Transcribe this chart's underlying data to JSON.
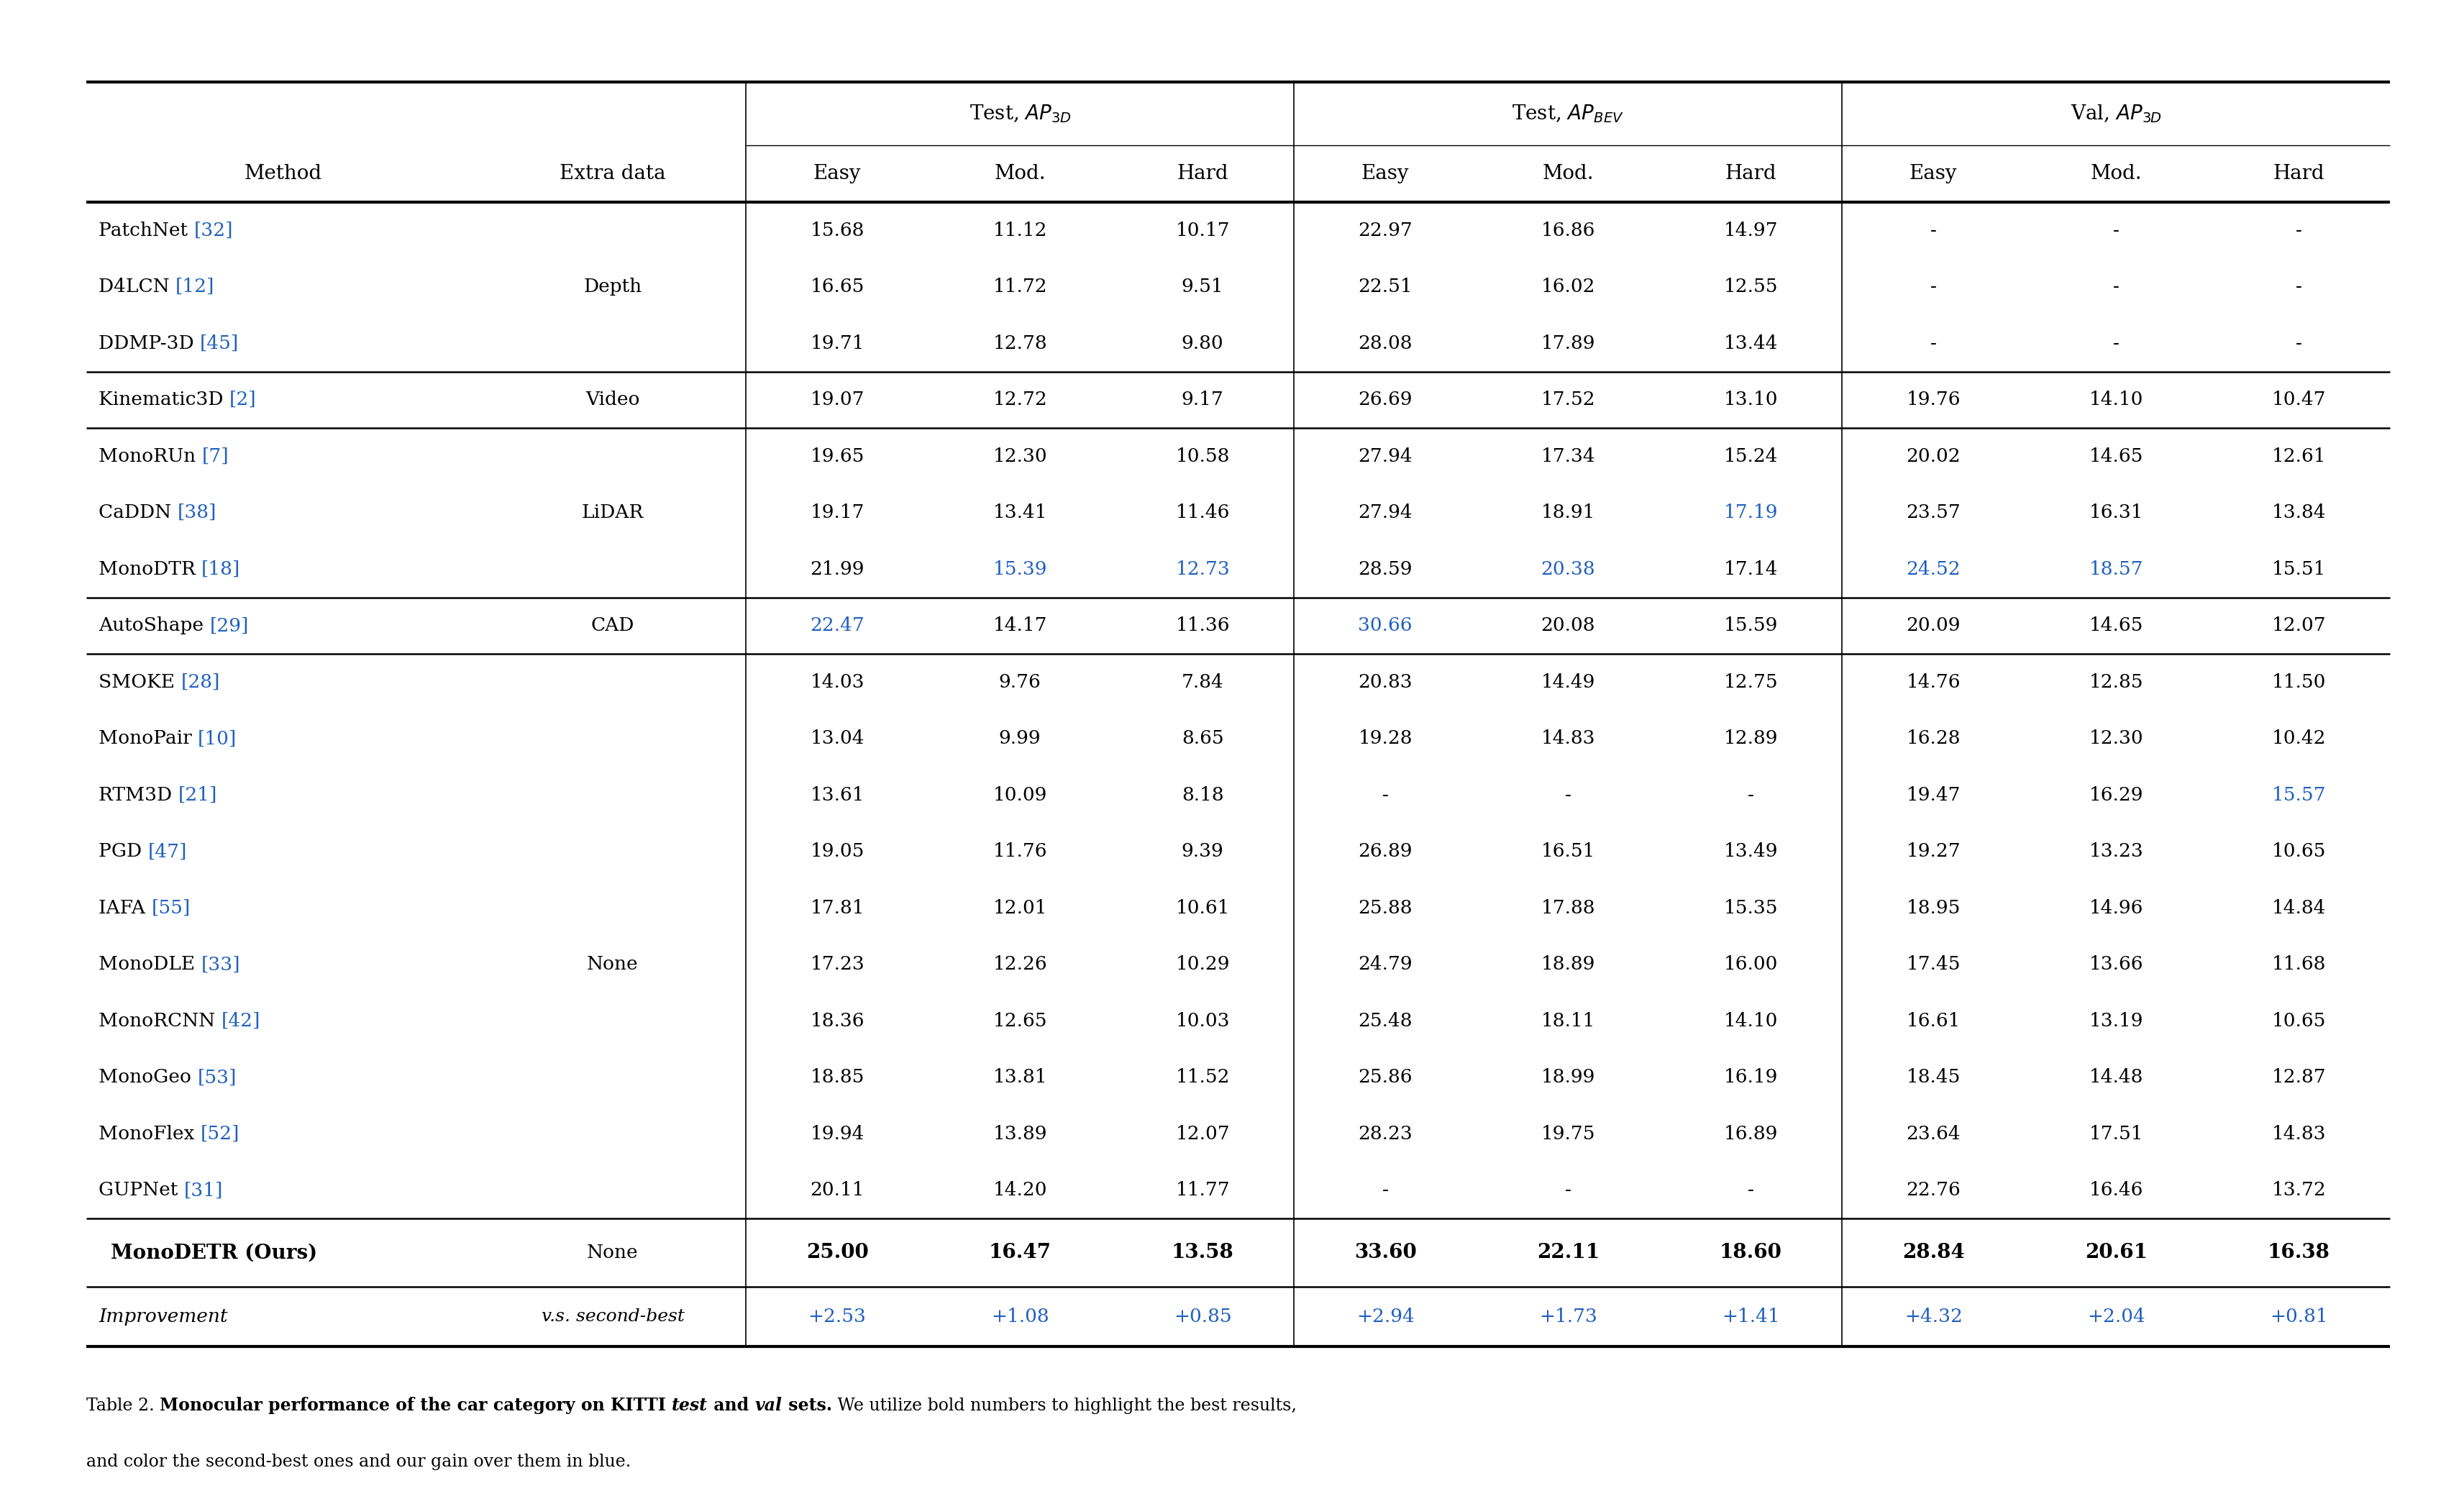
{
  "groups": [
    {
      "extra_data": "Depth",
      "rows": [
        {
          "method": "PatchNet",
          "ref": "[32]",
          "data": [
            "15.68",
            "11.12",
            "10.17",
            "22.97",
            "16.86",
            "14.97",
            "-",
            "-",
            "-"
          ],
          "colors": [
            "k",
            "k",
            "k",
            "k",
            "k",
            "k",
            "k",
            "k",
            "k"
          ]
        },
        {
          "method": "D4LCN",
          "ref": "[12]",
          "data": [
            "16.65",
            "11.72",
            "9.51",
            "22.51",
            "16.02",
            "12.55",
            "-",
            "-",
            "-"
          ],
          "colors": [
            "k",
            "k",
            "k",
            "k",
            "k",
            "k",
            "k",
            "k",
            "k"
          ]
        },
        {
          "method": "DDMP-3D",
          "ref": "[45]",
          "data": [
            "19.71",
            "12.78",
            "9.80",
            "28.08",
            "17.89",
            "13.44",
            "-",
            "-",
            "-"
          ],
          "colors": [
            "k",
            "k",
            "k",
            "k",
            "k",
            "k",
            "k",
            "k",
            "k"
          ]
        }
      ]
    },
    {
      "extra_data": "Video",
      "rows": [
        {
          "method": "Kinematic3D",
          "ref": "[2]",
          "data": [
            "19.07",
            "12.72",
            "9.17",
            "26.69",
            "17.52",
            "13.10",
            "19.76",
            "14.10",
            "10.47"
          ],
          "colors": [
            "k",
            "k",
            "k",
            "k",
            "k",
            "k",
            "k",
            "k",
            "k"
          ]
        }
      ]
    },
    {
      "extra_data": "LiDAR",
      "rows": [
        {
          "method": "MonoRUn",
          "ref": "[7]",
          "data": [
            "19.65",
            "12.30",
            "10.58",
            "27.94",
            "17.34",
            "15.24",
            "20.02",
            "14.65",
            "12.61"
          ],
          "colors": [
            "k",
            "k",
            "k",
            "k",
            "k",
            "k",
            "k",
            "k",
            "k"
          ]
        },
        {
          "method": "CaDDN",
          "ref": "[38]",
          "data": [
            "19.17",
            "13.41",
            "11.46",
            "27.94",
            "18.91",
            "17.19",
            "23.57",
            "16.31",
            "13.84"
          ],
          "colors": [
            "k",
            "k",
            "k",
            "k",
            "k",
            "b",
            "k",
            "k",
            "k"
          ]
        },
        {
          "method": "MonoDTR",
          "ref": "[18]",
          "data": [
            "21.99",
            "15.39",
            "12.73",
            "28.59",
            "20.38",
            "17.14",
            "24.52",
            "18.57",
            "15.51"
          ],
          "colors": [
            "k",
            "b",
            "b",
            "k",
            "b",
            "k",
            "b",
            "b",
            "k"
          ]
        }
      ]
    },
    {
      "extra_data": "CAD",
      "rows": [
        {
          "method": "AutoShape",
          "ref": "[29]",
          "data": [
            "22.47",
            "14.17",
            "11.36",
            "30.66",
            "20.08",
            "15.59",
            "20.09",
            "14.65",
            "12.07"
          ],
          "colors": [
            "b",
            "k",
            "k",
            "b",
            "k",
            "k",
            "k",
            "k",
            "k"
          ]
        }
      ]
    },
    {
      "extra_data": "None",
      "rows": [
        {
          "method": "SMOKE",
          "ref": "[28]",
          "data": [
            "14.03",
            "9.76",
            "7.84",
            "20.83",
            "14.49",
            "12.75",
            "14.76",
            "12.85",
            "11.50"
          ],
          "colors": [
            "k",
            "k",
            "k",
            "k",
            "k",
            "k",
            "k",
            "k",
            "k"
          ]
        },
        {
          "method": "MonoPair",
          "ref": "[10]",
          "data": [
            "13.04",
            "9.99",
            "8.65",
            "19.28",
            "14.83",
            "12.89",
            "16.28",
            "12.30",
            "10.42"
          ],
          "colors": [
            "k",
            "k",
            "k",
            "k",
            "k",
            "k",
            "k",
            "k",
            "k"
          ]
        },
        {
          "method": "RTM3D",
          "ref": "[21]",
          "data": [
            "13.61",
            "10.09",
            "8.18",
            "-",
            "-",
            "-",
            "19.47",
            "16.29",
            "15.57"
          ],
          "colors": [
            "k",
            "k",
            "k",
            "k",
            "k",
            "k",
            "k",
            "k",
            "b"
          ]
        },
        {
          "method": "PGD",
          "ref": "[47]",
          "data": [
            "19.05",
            "11.76",
            "9.39",
            "26.89",
            "16.51",
            "13.49",
            "19.27",
            "13.23",
            "10.65"
          ],
          "colors": [
            "k",
            "k",
            "k",
            "k",
            "k",
            "k",
            "k",
            "k",
            "k"
          ]
        },
        {
          "method": "IAFA",
          "ref": "[55]",
          "data": [
            "17.81",
            "12.01",
            "10.61",
            "25.88",
            "17.88",
            "15.35",
            "18.95",
            "14.96",
            "14.84"
          ],
          "colors": [
            "k",
            "k",
            "k",
            "k",
            "k",
            "k",
            "k",
            "k",
            "k"
          ]
        },
        {
          "method": "MonoDLE",
          "ref": "[33]",
          "data": [
            "17.23",
            "12.26",
            "10.29",
            "24.79",
            "18.89",
            "16.00",
            "17.45",
            "13.66",
            "11.68"
          ],
          "colors": [
            "k",
            "k",
            "k",
            "k",
            "k",
            "k",
            "k",
            "k",
            "k"
          ]
        },
        {
          "method": "MonoRCNN",
          "ref": "[42]",
          "data": [
            "18.36",
            "12.65",
            "10.03",
            "25.48",
            "18.11",
            "14.10",
            "16.61",
            "13.19",
            "10.65"
          ],
          "colors": [
            "k",
            "k",
            "k",
            "k",
            "k",
            "k",
            "k",
            "k",
            "k"
          ]
        },
        {
          "method": "MonoGeo",
          "ref": "[53]",
          "data": [
            "18.85",
            "13.81",
            "11.52",
            "25.86",
            "18.99",
            "16.19",
            "18.45",
            "14.48",
            "12.87"
          ],
          "colors": [
            "k",
            "k",
            "k",
            "k",
            "k",
            "k",
            "k",
            "k",
            "k"
          ]
        },
        {
          "method": "MonoFlex",
          "ref": "[52]",
          "data": [
            "19.94",
            "13.89",
            "12.07",
            "28.23",
            "19.75",
            "16.89",
            "23.64",
            "17.51",
            "14.83"
          ],
          "colors": [
            "k",
            "k",
            "k",
            "k",
            "k",
            "k",
            "k",
            "k",
            "k"
          ]
        },
        {
          "method": "GUPNet",
          "ref": "[31]",
          "data": [
            "20.11",
            "14.20",
            "11.77",
            "-",
            "-",
            "-",
            "22.76",
            "16.46",
            "13.72"
          ],
          "colors": [
            "k",
            "k",
            "k",
            "k",
            "k",
            "k",
            "k",
            "k",
            "k"
          ]
        }
      ]
    }
  ],
  "ours": {
    "method": "MonoDETR (Ours)",
    "extra_data": "None",
    "data": [
      "25.00",
      "16.47",
      "13.58",
      "33.60",
      "22.11",
      "18.60",
      "28.84",
      "20.61",
      "16.38"
    ]
  },
  "improvement": {
    "method": "Improvement",
    "extra_data": "v.s. second-best",
    "data": [
      "+2.53",
      "+1.08",
      "+0.85",
      "+2.94",
      "+1.73",
      "+1.41",
      "+4.32",
      "+2.04",
      "+0.81"
    ]
  },
  "blue": "#2060C0",
  "black": "#000000",
  "white": "#FFFFFF"
}
